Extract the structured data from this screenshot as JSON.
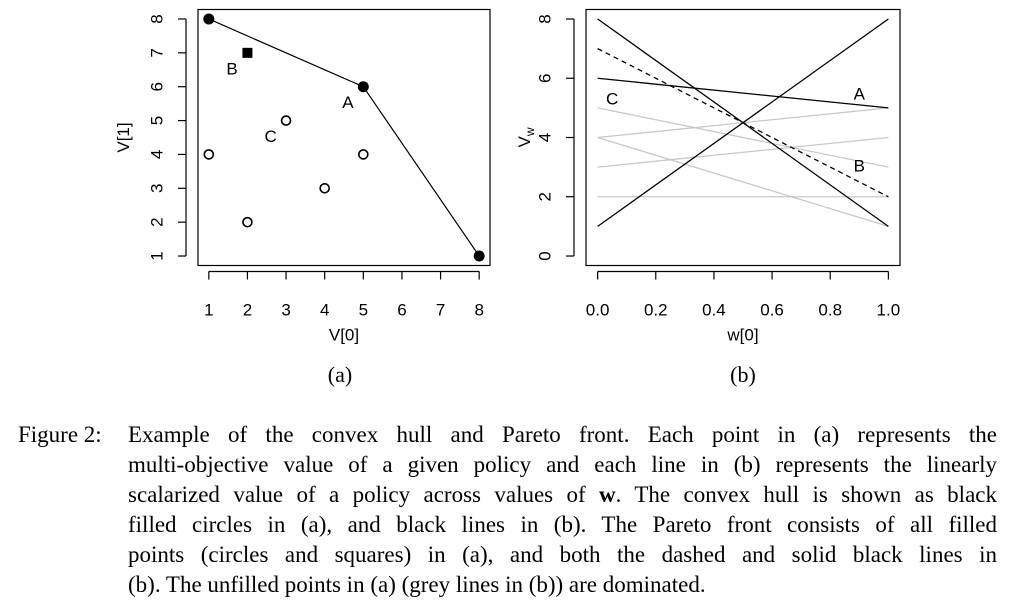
{
  "chart_data": [
    {
      "type": "scatter",
      "subcaption": "(a)",
      "xlabel": "V[0]",
      "ylabel": "V[1]",
      "xlim": [
        0.72,
        8.28
      ],
      "ylim": [
        0.72,
        8.28
      ],
      "xticks": [
        1,
        2,
        3,
        4,
        5,
        6,
        7,
        8
      ],
      "yticks": [
        1,
        2,
        3,
        4,
        5,
        6,
        7,
        8
      ],
      "series": [
        {
          "marker": "filled-circle",
          "color": "#000000",
          "connect": true,
          "x": [
            1,
            5,
            8
          ],
          "values": [
            8,
            6,
            1
          ]
        },
        {
          "marker": "filled-square",
          "color": "#000000",
          "connect": false,
          "x": [
            2
          ],
          "values": [
            7
          ]
        },
        {
          "marker": "open-circle",
          "color": "#000000",
          "connect": false,
          "x": [
            1,
            2,
            3,
            4,
            5
          ],
          "values": [
            4,
            2,
            5,
            3,
            4
          ]
        }
      ],
      "annotations": [
        {
          "text": "B",
          "x": 1.6,
          "y": 6.5,
          "color": "#000000"
        },
        {
          "text": "A",
          "x": 4.6,
          "y": 5.5,
          "color": "#000000"
        },
        {
          "text": "C",
          "x": 2.6,
          "y": 4.5,
          "color": "#000000"
        }
      ]
    },
    {
      "type": "line",
      "subcaption": "(b)",
      "xlabel": "w[0]",
      "ylabel": "V",
      "ylabel_subscript": "w",
      "xlim": [
        -0.04,
        1.04
      ],
      "ylim": [
        -0.32,
        8.32
      ],
      "xticks": [
        {
          "value": 0,
          "label": "0.0"
        },
        0.2,
        0.4,
        0.6,
        0.8,
        {
          "value": 1,
          "label": "1.0"
        }
      ],
      "yticks": [
        0,
        2,
        4,
        6,
        8
      ],
      "x": [
        0,
        1
      ],
      "series": [
        {
          "color": "#c8c8c8",
          "dash": false,
          "values": [
            5,
            3
          ]
        },
        {
          "color": "#c8c8c8",
          "dash": false,
          "values": [
            4,
            1
          ]
        },
        {
          "color": "#c8c8c8",
          "dash": false,
          "values": [
            2,
            2
          ]
        },
        {
          "color": "#c8c8c8",
          "dash": false,
          "values": [
            3,
            4
          ]
        },
        {
          "color": "#c8c8c8",
          "dash": false,
          "values": [
            4,
            5
          ]
        },
        {
          "color": "#000000",
          "dash": false,
          "values": [
            1,
            8
          ]
        },
        {
          "color": "#000000",
          "dash": false,
          "values": [
            8,
            1
          ]
        },
        {
          "color": "#000000",
          "dash": false,
          "values": [
            6,
            5
          ]
        },
        {
          "color": "#000000",
          "dash": true,
          "values": [
            7,
            2
          ]
        }
      ],
      "annotations": [
        {
          "text": "A",
          "x": 0.9,
          "y": 5.43,
          "color": "#000000"
        },
        {
          "text": "B",
          "x": 0.9,
          "y": 3.0,
          "color": "#000000"
        },
        {
          "text": "C",
          "x": 0.05,
          "y": 5.27,
          "color": "#c8c8c8"
        }
      ]
    }
  ],
  "caption": {
    "label": "Figure 2:",
    "lines": [
      [
        "Example of the convex hull and Pareto front. Each point in (a) represents the"
      ],
      [
        "multi-objective value of a given policy and each line in (b) represents the linearly"
      ],
      [
        "scalarized value of a policy across values of ",
        "w",
        ". The convex hull is shown as black"
      ],
      [
        "filled circles in (a), and black lines in (b). The Pareto front consists of all filled"
      ],
      [
        "points (circles and squares) in (a), and both the dashed and solid black lines in"
      ],
      [
        "(b). The unfilled points in (a) (grey lines in (b)) are dominated."
      ]
    ]
  }
}
